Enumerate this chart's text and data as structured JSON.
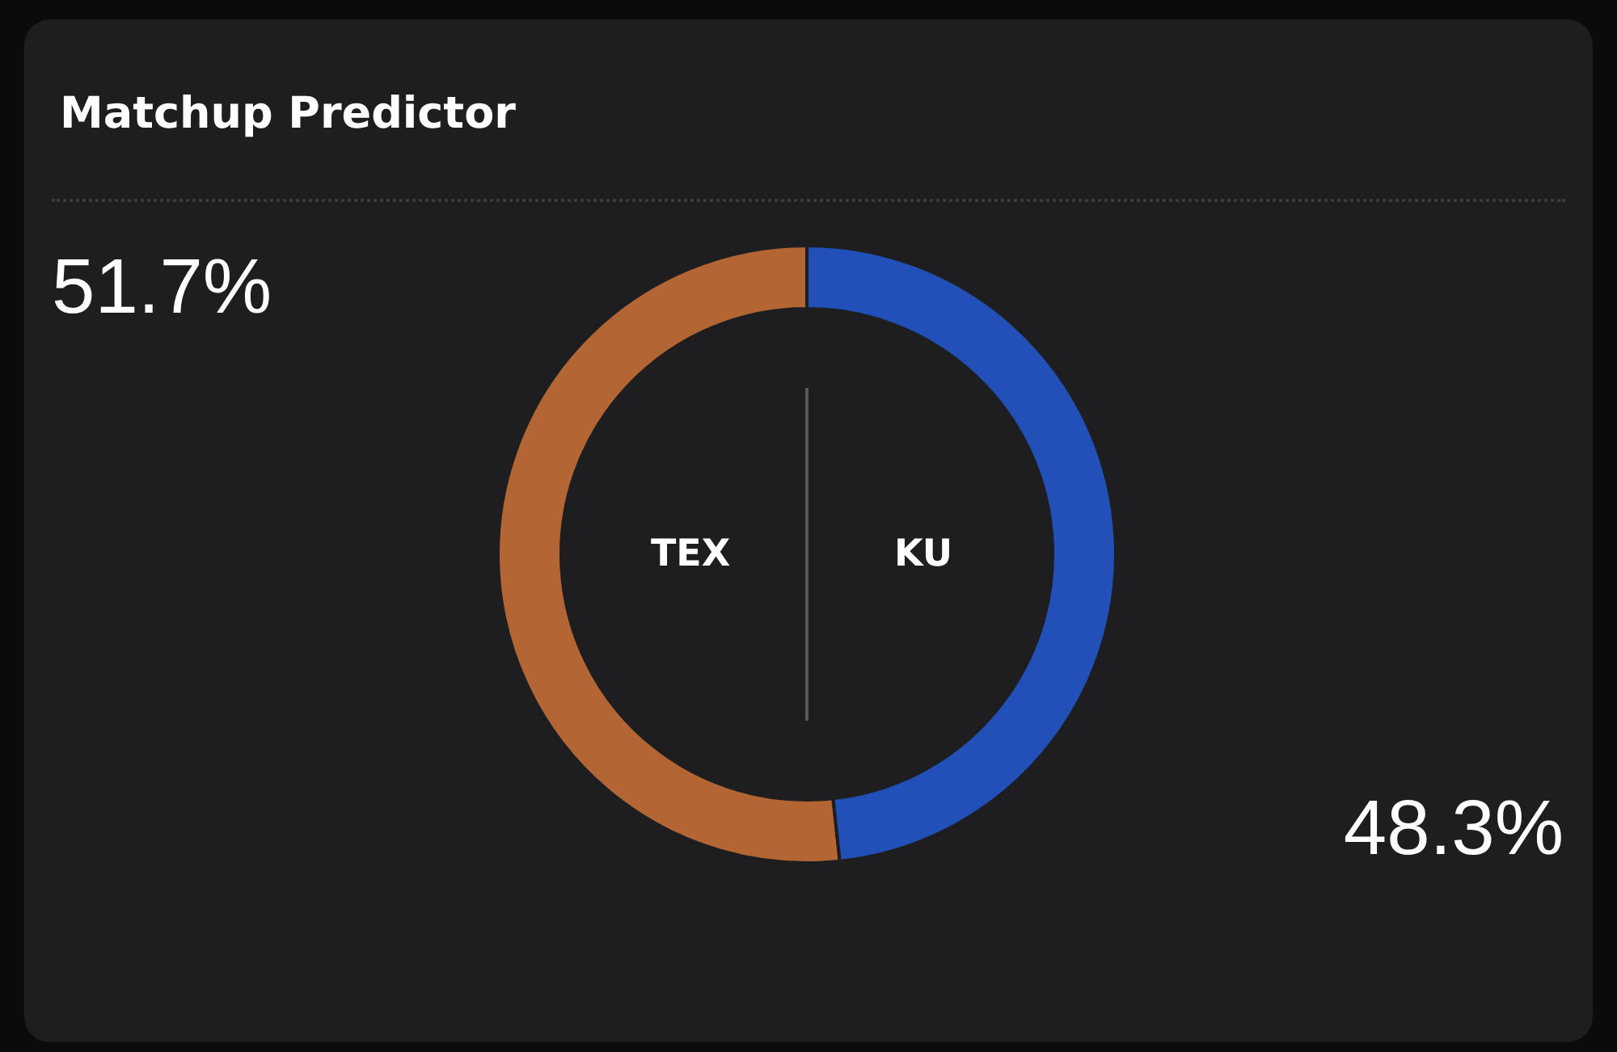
{
  "chart_data": {
    "type": "donut",
    "title": "Matchup Predictor",
    "categories": [
      "TEX",
      "KU"
    ],
    "values": [
      51.7,
      48.3
    ],
    "colors": [
      "#b36634",
      "#2150b8"
    ],
    "value_labels": [
      "51.7%",
      "48.3%"
    ],
    "legend": false
  }
}
